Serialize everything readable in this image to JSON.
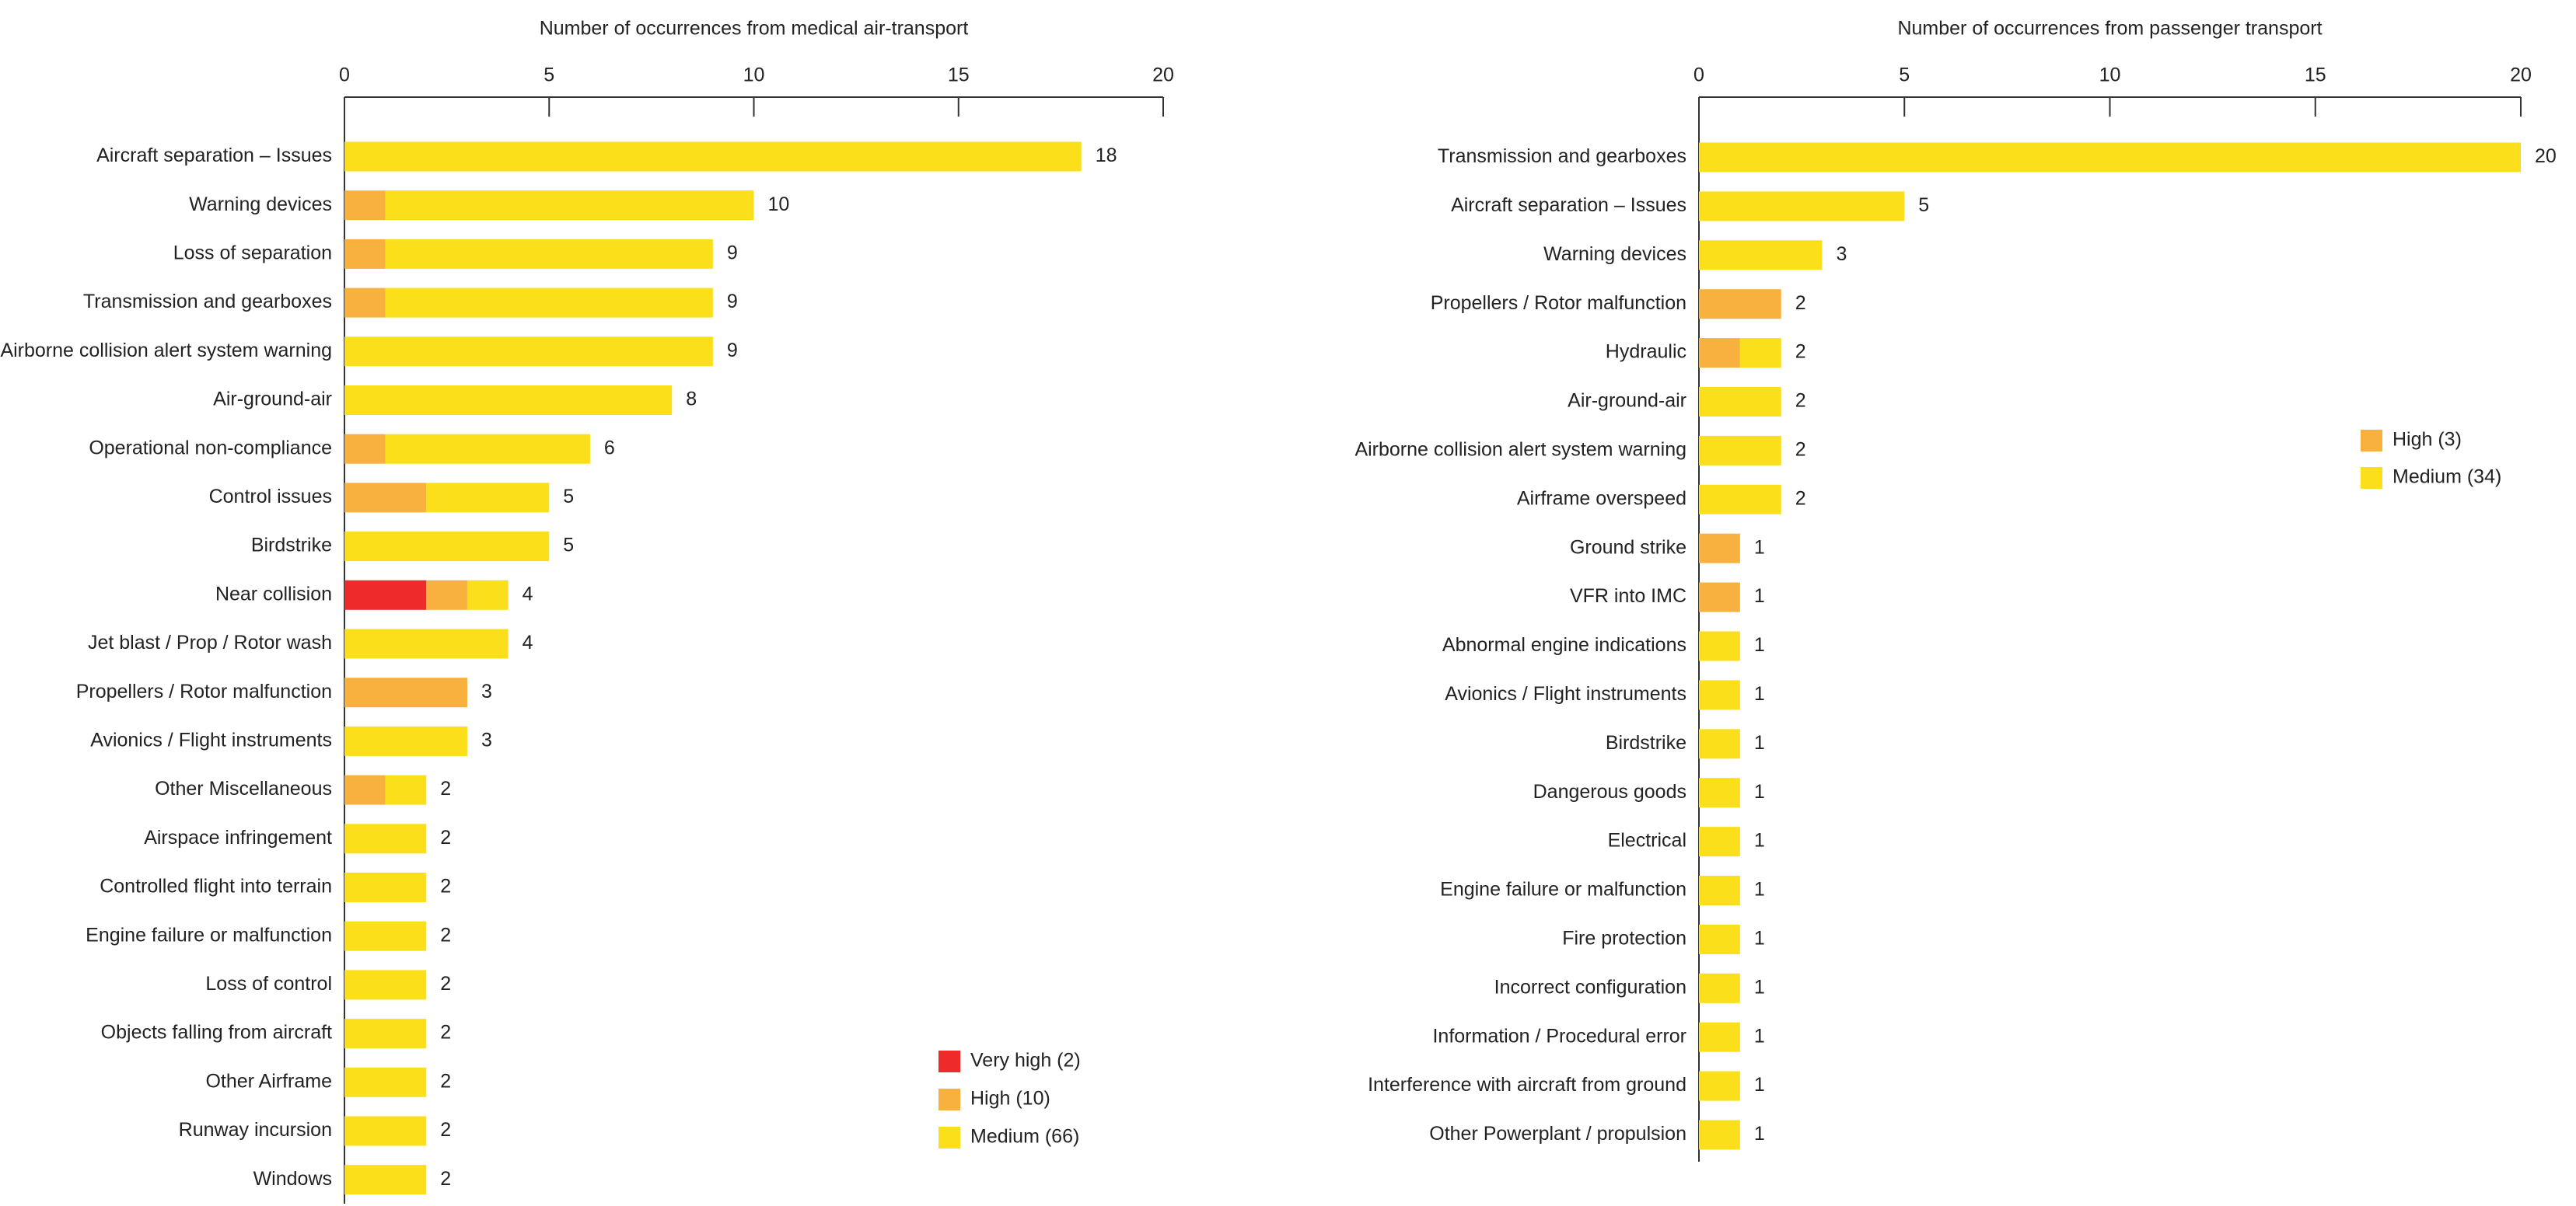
{
  "chart_data": [
    {
      "type": "bar",
      "orientation": "horizontal",
      "stacked": true,
      "xlabel": "Number of occurrences from medical air-transport",
      "ylabel": "",
      "xlim": [
        0,
        20
      ],
      "x_ticks": [
        0,
        5,
        10,
        15,
        20
      ],
      "grid": false,
      "legend_position": "bottom-right",
      "categories": [
        "Aircraft separation – Issues",
        "Warning devices",
        "Loss of separation",
        "Transmission and gearboxes",
        "Airborne collision alert system warning",
        "Air-ground-air",
        "Operational non-compliance",
        "Control issues",
        "Birdstrike",
        "Near collision",
        "Jet blast / Prop / Rotor wash",
        "Propellers / Rotor malfunction",
        "Avionics / Flight instruments",
        "Other Miscellaneous",
        "Airspace infringement",
        "Controlled flight into terrain",
        "Engine failure or malfunction",
        "Loss of control",
        "Objects falling from aircraft",
        "Other Airframe",
        "Runway incursion",
        "Windows"
      ],
      "series": [
        {
          "name": "Very high (2)",
          "color": "#ee2a2a",
          "values": [
            0,
            0,
            0,
            0,
            0,
            0,
            0,
            0,
            0,
            2,
            0,
            0,
            0,
            0,
            0,
            0,
            0,
            0,
            0,
            0,
            0,
            0
          ]
        },
        {
          "name": "High (10)",
          "color": "#f8b03f",
          "values": [
            0,
            1,
            1,
            1,
            0,
            0,
            1,
            2,
            0,
            1,
            0,
            3,
            0,
            1,
            0,
            0,
            0,
            0,
            0,
            0,
            0,
            0
          ]
        },
        {
          "name": "Medium (66)",
          "color": "#fbdf1a",
          "values": [
            18,
            9,
            8,
            8,
            9,
            8,
            5,
            3,
            5,
            1,
            4,
            0,
            3,
            1,
            2,
            2,
            2,
            2,
            2,
            2,
            2,
            2
          ]
        }
      ],
      "totals": [
        "18",
        "10",
        "9",
        "9",
        "9",
        "8",
        "6",
        "5",
        "5",
        "4",
        "4",
        "3",
        "3",
        "2",
        "2",
        "2",
        "2",
        "2",
        "2",
        "2",
        "2",
        "2"
      ]
    },
    {
      "type": "bar",
      "orientation": "horizontal",
      "stacked": true,
      "xlabel": "Number of occurrences from passenger transport",
      "ylabel": "",
      "xlim": [
        0,
        20
      ],
      "x_ticks": [
        0,
        5,
        10,
        15,
        20
      ],
      "grid": false,
      "legend_position": "right",
      "categories": [
        "Transmission and gearboxes",
        "Aircraft separation – Issues",
        "Warning devices",
        "Propellers / Rotor malfunction",
        "Hydraulic",
        "Air-ground-air",
        "Airborne collision alert system warning",
        "Airframe overspeed",
        "Ground strike",
        "VFR into IMC",
        "Abnormal engine indications",
        "Avionics / Flight instruments",
        "Birdstrike",
        "Dangerous goods",
        "Electrical",
        "Engine failure or malfunction",
        "Fire protection",
        "Incorrect configuration",
        "Information / Procedural error",
        "Interference with aircraft from ground",
        "Other Powerplant / propulsion"
      ],
      "series": [
        {
          "name": "High (3)",
          "color": "#f8b03f",
          "values": [
            0,
            0,
            0,
            2,
            1,
            0,
            0,
            0,
            1,
            1,
            0,
            0,
            0,
            0,
            0,
            0,
            0,
            0,
            0,
            0,
            0
          ]
        },
        {
          "name": "Medium (34)",
          "color": "#fbdf1a",
          "values": [
            20,
            5,
            3,
            0,
            1,
            2,
            2,
            2,
            0,
            0,
            1,
            1,
            1,
            1,
            1,
            1,
            1,
            1,
            1,
            1,
            1
          ]
        }
      ],
      "totals": [
        "20",
        "5",
        "3",
        "2",
        "2",
        "2",
        "2",
        "2",
        "1",
        "1",
        "1",
        "1",
        "1",
        "1",
        "1",
        "1",
        "1",
        "1",
        "1",
        "1",
        "1"
      ]
    }
  ]
}
